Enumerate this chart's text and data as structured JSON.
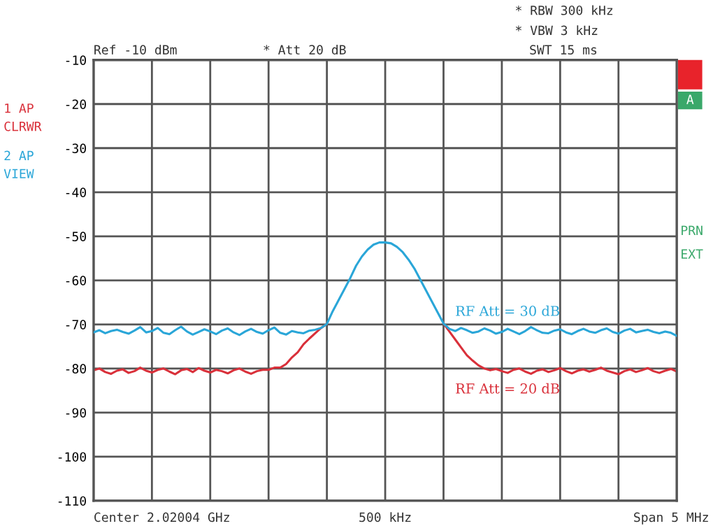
{
  "chart_data": {
    "type": "line",
    "categories": [
      null,
      null,
      null,
      null,
      null,
      null,
      null,
      null,
      null,
      null,
      null,
      null,
      null,
      null,
      null,
      null,
      null,
      null,
      null,
      null,
      null,
      null,
      null,
      null,
      null,
      null,
      null,
      null,
      null,
      null,
      null,
      null,
      null,
      null,
      null,
      null,
      null,
      null,
      null,
      null,
      null,
      null,
      null,
      null,
      null,
      null,
      null,
      null,
      null,
      null,
      null,
      null,
      null,
      null,
      null,
      null,
      null,
      null,
      null,
      null,
      null,
      null,
      null,
      null,
      null,
      null,
      null,
      null,
      null,
      null,
      null,
      null,
      null,
      null,
      null,
      null,
      null,
      null,
      null,
      null,
      null,
      null,
      null,
      null,
      null,
      null,
      null,
      null,
      null,
      null,
      null,
      null,
      null,
      null,
      null,
      null,
      null,
      null,
      null,
      null,
      null
    ],
    "series": [
      {
        "name": "RF Att = 30 dB",
        "color": "#2aa6d8",
        "values": [
          -71.8,
          -71.3,
          -72.0,
          -71.5,
          -71.2,
          -71.7,
          -72.1,
          -71.4,
          -70.6,
          -71.8,
          -71.5,
          -70.8,
          -71.9,
          -72.2,
          -71.3,
          -70.5,
          -71.6,
          -72.3,
          -71.7,
          -71.1,
          -71.6,
          -72.2,
          -71.4,
          -70.9,
          -71.8,
          -72.4,
          -71.6,
          -71.0,
          -71.7,
          -72.1,
          -71.3,
          -70.7,
          -71.9,
          -72.3,
          -71.5,
          -71.8,
          -72.0,
          -71.4,
          -71.2,
          -70.8,
          -69.9,
          -67.0,
          -64.5,
          -62.0,
          -59.5,
          -56.7,
          -54.6,
          -53.0,
          -51.9,
          -51.4,
          -51.4,
          -51.6,
          -52.4,
          -53.6,
          -55.3,
          -57.3,
          -59.8,
          -62.3,
          -64.8,
          -67.3,
          -69.8,
          -71.0,
          -71.5,
          -70.8,
          -71.3,
          -71.9,
          -71.6,
          -70.9,
          -71.4,
          -72.1,
          -71.7,
          -71.0,
          -71.6,
          -72.2,
          -71.5,
          -70.6,
          -71.3,
          -71.9,
          -72.0,
          -71.4,
          -71.1,
          -71.8,
          -72.2,
          -71.5,
          -71.0,
          -71.6,
          -71.9,
          -71.3,
          -70.9,
          -71.7,
          -72.1,
          -71.4,
          -71.0,
          -71.8,
          -71.5,
          -71.2,
          -71.7,
          -72.0,
          -71.6,
          -71.9,
          -72.6
        ]
      },
      {
        "name": "RF Att = 20 dB",
        "color": "#d9303a",
        "values": [
          -80.4,
          -80.0,
          -80.8,
          -81.2,
          -80.5,
          -80.2,
          -81.0,
          -80.6,
          -79.8,
          -80.5,
          -80.9,
          -80.3,
          -80.0,
          -80.7,
          -81.3,
          -80.4,
          -80.1,
          -80.8,
          -79.9,
          -80.5,
          -80.9,
          -80.3,
          -80.6,
          -81.1,
          -80.4,
          -80.0,
          -80.7,
          -81.2,
          -80.6,
          -80.3,
          -80.3,
          -79.8,
          -79.8,
          -79.0,
          -77.5,
          -76.3,
          -74.5,
          -73.2,
          -72.0,
          -70.8,
          -69.9,
          null,
          null,
          null,
          null,
          null,
          null,
          null,
          null,
          null,
          null,
          null,
          null,
          null,
          null,
          null,
          null,
          null,
          null,
          null,
          -69.8,
          -71.6,
          -73.4,
          -75.2,
          -77.0,
          -78.2,
          -79.3,
          -80.0,
          -80.4,
          -80.1,
          -80.6,
          -81.0,
          -80.3,
          -80.0,
          -80.7,
          -81.2,
          -80.5,
          -80.2,
          -80.8,
          -80.4,
          -79.9,
          -80.6,
          -81.1,
          -80.5,
          -80.2,
          -80.7,
          -80.3,
          -79.8,
          -80.5,
          -80.9,
          -81.3,
          -80.6,
          -80.2,
          -80.8,
          -80.4,
          -79.9,
          -80.6,
          -81.0,
          -80.5,
          -80.1,
          -80.7
        ]
      }
    ],
    "ylim": [
      -110,
      -10
    ],
    "yticks": [
      -10,
      -20,
      -30,
      -40,
      -50,
      -60,
      -70,
      -80,
      -90,
      -100,
      -110
    ],
    "grid": true,
    "legend": false,
    "tick_labels": "y",
    "annotations": [
      "Ref -10 dBm",
      "* Att 20 dB",
      "* RBW 300 kHz",
      "* VBW 3 kHz",
      "SWT 15 ms",
      "1 AP\nCLRWR",
      "2 AP\nVIEW",
      "PRN",
      "EXT",
      "Center 2.02004 GHz",
      "500 kHz",
      "Span 5 MHz",
      "A"
    ]
  }
}
